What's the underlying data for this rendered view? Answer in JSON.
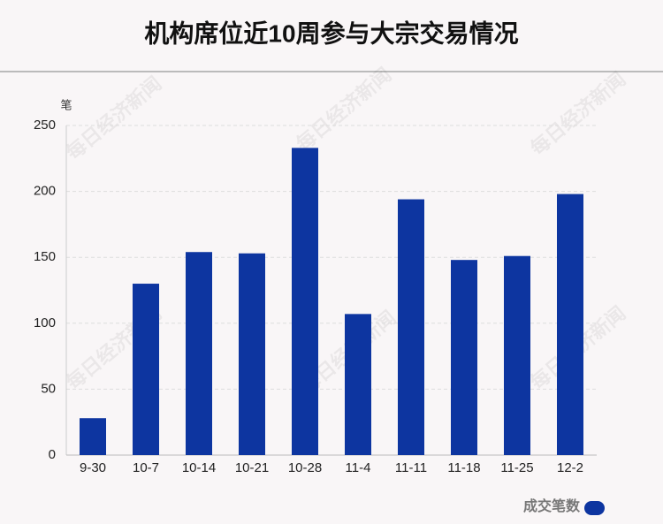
{
  "chart_data": {
    "type": "bar",
    "title": "机构席位近10周参与大宗交易情况",
    "y_label": "笔",
    "watermark": "每日经济新闻",
    "categories": [
      "9-30",
      "10-7",
      "10-14",
      "10-21",
      "10-28",
      "11-4",
      "11-11",
      "11-18",
      "11-25",
      "12-2"
    ],
    "series": [
      {
        "name": "成交笔数",
        "color": "#0d35a0",
        "values": [
          28,
          130,
          154,
          153,
          233,
          107,
          194,
          148,
          151,
          198
        ]
      }
    ],
    "ylim": [
      0,
      250
    ],
    "yticks": [
      0,
      50,
      100,
      150,
      200,
      250
    ],
    "grid": true
  }
}
